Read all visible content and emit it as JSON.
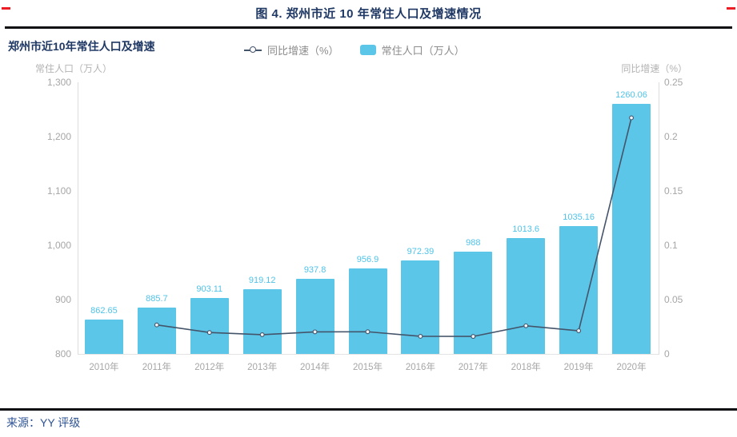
{
  "page": {
    "title": "图 4. 郑州市近 10 年常住人口及增速情况",
    "source": "来源：YY 评级"
  },
  "chart": {
    "title": "郑州市近10年常住人口及增速",
    "legend_line_label": "同比增速（%）",
    "legend_bar_label": "常住人口（万人）",
    "left_axis_label": "常住人口（万人）",
    "right_axis_label": "同比增速（%）"
  },
  "chart_data": {
    "type": "bar+line",
    "title": "郑州市近10年常住人口及增速",
    "categories": [
      "2010年",
      "2011年",
      "2012年",
      "2013年",
      "2014年",
      "2015年",
      "2016年",
      "2017年",
      "2018年",
      "2019年",
      "2020年"
    ],
    "series": [
      {
        "name": "常住人口（万人）",
        "type": "bar",
        "axis": "left",
        "values": [
          862.65,
          885.7,
          903.11,
          919.12,
          937.8,
          956.9,
          972.39,
          988,
          1013.6,
          1035.16,
          1260.06
        ],
        "labels": [
          "862.65",
          "885.7",
          "903.11",
          "919.12",
          "937.8",
          "956.9",
          "972.39",
          "988",
          "1013.6",
          "1035.16",
          "1260.06"
        ]
      },
      {
        "name": "同比增速（%）",
        "type": "line",
        "axis": "right",
        "values": [
          null,
          0.0267,
          0.0197,
          0.0177,
          0.0203,
          0.0204,
          0.0162,
          0.0161,
          0.0259,
          0.0213,
          0.2173
        ]
      }
    ],
    "left_axis": {
      "label": "常住人口（万人）",
      "min": 800,
      "max": 1300,
      "ticks": [
        "800",
        "900",
        "1,000",
        "1,100",
        "1,200",
        "1,300"
      ]
    },
    "right_axis": {
      "label": "同比增速（%）",
      "min": 0,
      "max": 0.25,
      "ticks": [
        "0",
        "0.05",
        "0.1",
        "0.15",
        "0.2",
        "0.25"
      ]
    },
    "grid": false,
    "legend_position": "top-center",
    "colors": {
      "bar": "#5bc6e8",
      "bar_label": "#4fc3e9",
      "line": "#44546a",
      "tick_text": "#a6a6a6"
    }
  }
}
